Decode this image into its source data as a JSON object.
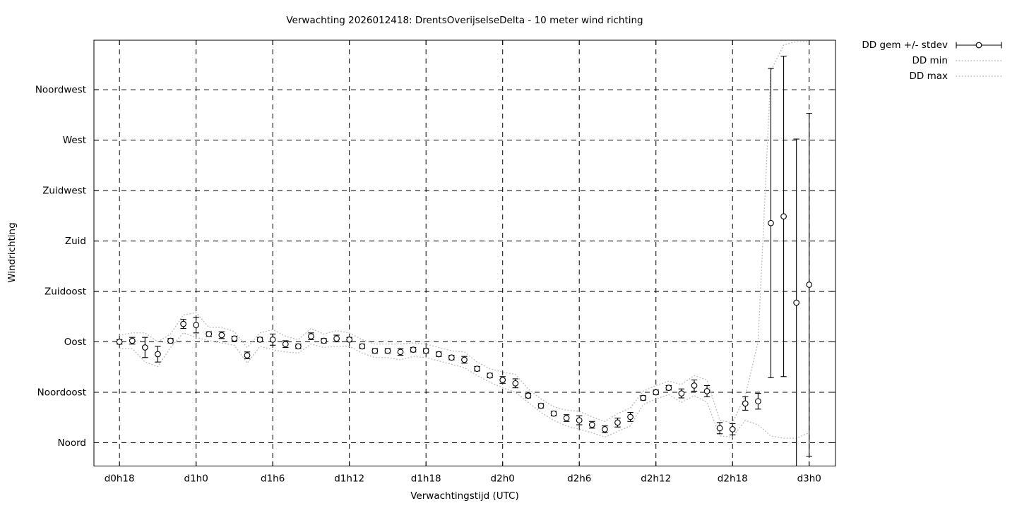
{
  "page": {
    "background": "#ffffff"
  },
  "chart_data": {
    "type": "line",
    "subtype": "yerrorbars-with-min-max-band",
    "title": "Verwachting 2026012418: DrentsOverijselseDelta - 10 meter wind richting",
    "xlabel": "Verwachtingstijd (UTC)",
    "ylabel": "Windrichting",
    "grid": true,
    "legend_position": "outside-top-right",
    "x_index_unit": "hours since first forecast point (d0h18), 1 point per hour",
    "xlim_hours": [
      -2,
      56.06
    ],
    "ylim_deg": [
      -20.8,
      359.2
    ],
    "x_ticks": [
      {
        "t": 0,
        "label": "d0h18"
      },
      {
        "t": 6,
        "label": "d1h0"
      },
      {
        "t": 12,
        "label": "d1h6"
      },
      {
        "t": 18,
        "label": "d1h12"
      },
      {
        "t": 24,
        "label": "d1h18"
      },
      {
        "t": 30,
        "label": "d2h0"
      },
      {
        "t": 36,
        "label": "d2h6"
      },
      {
        "t": 42,
        "label": "d2h12"
      },
      {
        "t": 48,
        "label": "d2h18"
      },
      {
        "t": 54,
        "label": "d3h0"
      }
    ],
    "y_ticks": [
      {
        "value": 0,
        "label": "Noord"
      },
      {
        "value": 45,
        "label": "Noordoost"
      },
      {
        "value": 90,
        "label": "Oost"
      },
      {
        "value": 135,
        "label": "Zuidoost"
      },
      {
        "value": 180,
        "label": "Zuid"
      },
      {
        "value": 225,
        "label": "Zuidwest"
      },
      {
        "value": 270,
        "label": "West"
      },
      {
        "value": 315,
        "label": "Noordwest"
      }
    ],
    "colors": {
      "points": "#000000",
      "band": "#b8b8b8",
      "grid": "#000000"
    },
    "series": [
      {
        "name": "DD gem +/- stdev",
        "style": "yerrorbars",
        "color": "#000000",
        "mean": [
          90,
          91,
          85,
          79,
          91,
          106,
          105,
          97,
          96,
          93,
          78,
          92,
          92,
          88,
          86,
          95,
          91,
          93,
          92,
          86,
          82,
          82,
          81,
          83,
          82,
          79,
          76,
          74,
          66,
          60,
          56,
          53,
          42,
          33,
          26,
          22,
          20,
          16,
          12,
          18,
          23,
          40,
          45,
          49,
          44,
          51,
          46,
          13,
          12,
          35,
          37,
          196,
          202,
          125,
          141
        ],
        "stdev": [
          2,
          3,
          9,
          7,
          2,
          4,
          7,
          2,
          3,
          2,
          3,
          2,
          5,
          3,
          2,
          3,
          2,
          3,
          2,
          2,
          2,
          2,
          3,
          2,
          2,
          2,
          2,
          3,
          2,
          2,
          3,
          4,
          2,
          2,
          2,
          3,
          4,
          3,
          3,
          4,
          4,
          2,
          2,
          2,
          4,
          5,
          5,
          5,
          5,
          6,
          7,
          138,
          143,
          146,
          153
        ]
      },
      {
        "name": "DD min",
        "style": "dotted",
        "color": "#b8b8b8",
        "values": [
          84,
          84,
          72,
          68,
          85,
          98,
          94,
          91,
          89,
          87,
          71,
          86,
          83,
          81,
          80,
          88,
          85,
          86,
          86,
          80,
          76,
          76,
          74,
          77,
          76,
          73,
          70,
          67,
          60,
          54,
          49,
          45,
          36,
          27,
          20,
          15,
          12,
          9,
          5,
          10,
          15,
          34,
          39,
          43,
          36,
          42,
          36,
          6,
          5,
          20,
          16,
          6,
          4,
          4,
          9
        ]
      },
      {
        "name": "DD max",
        "style": "dotted",
        "color": "#b8b8b8",
        "values": [
          96,
          98,
          98,
          90,
          97,
          114,
          116,
          103,
          103,
          99,
          85,
          98,
          101,
          95,
          92,
          102,
          97,
          100,
          98,
          92,
          88,
          88,
          88,
          89,
          88,
          85,
          82,
          81,
          72,
          66,
          63,
          61,
          48,
          39,
          32,
          29,
          28,
          23,
          19,
          26,
          31,
          46,
          51,
          55,
          52,
          60,
          56,
          20,
          18,
          42,
          90,
          332,
          355,
          358,
          358
        ]
      }
    ]
  }
}
